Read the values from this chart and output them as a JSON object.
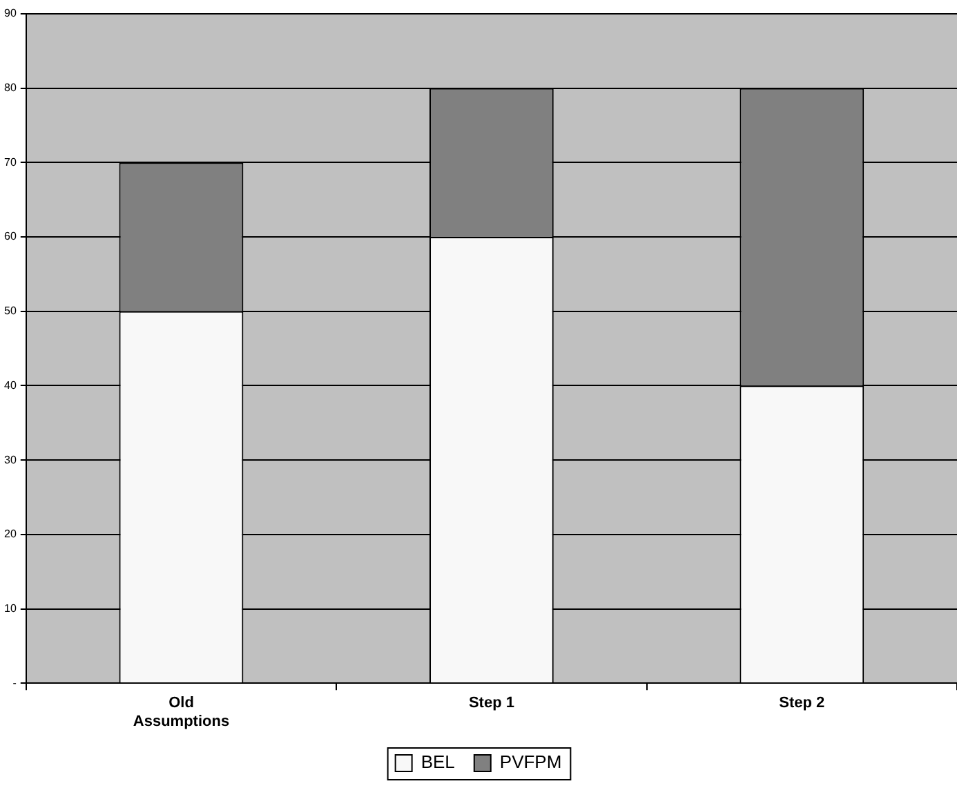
{
  "chart_data": {
    "type": "bar",
    "stacked": true,
    "categories": [
      "Old\nAssumptions",
      "Step 1",
      "Step 2"
    ],
    "series": [
      {
        "name": "BEL",
        "color": "#f8f8f8",
        "values": [
          50,
          60,
          40
        ]
      },
      {
        "name": "PVFPM",
        "color": "#808080",
        "values": [
          20,
          20,
          40
        ]
      }
    ],
    "ylim": [
      0,
      90
    ],
    "yticks": [
      {
        "value": 0,
        "label": "-"
      },
      10,
      20,
      30,
      40,
      50,
      60,
      70,
      80,
      90
    ],
    "grid": "y",
    "legend": "bottom"
  }
}
